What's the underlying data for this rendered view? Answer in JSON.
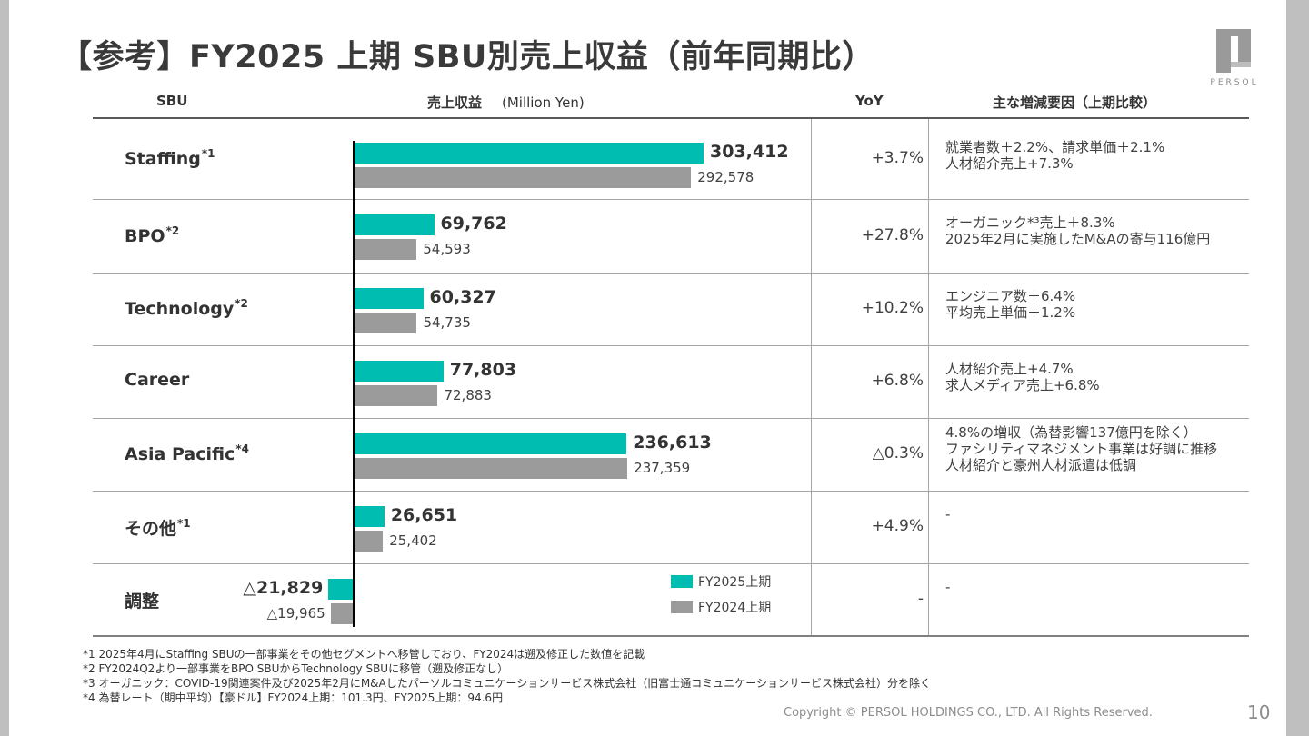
{
  "title": "【参考】FY2025 上期  SBU別売上収益（前年同期比）",
  "logo_text": "PERSOL",
  "headers": {
    "sbu": "SBU",
    "revenue": "売上収益",
    "unit": "(Million Yen)",
    "yoy": "YoY",
    "factors": "主な増減要因（上期比較）"
  },
  "rows": [
    {
      "name": "Staffing",
      "note": "*1",
      "yoy": "+3.7%",
      "factors": [
        "就業者数＋2.2%、請求単価＋2.1%",
        "人材紹介売上+7.3%"
      ],
      "fy25_label": "303,412",
      "fy24_label": "292,578"
    },
    {
      "name": "BPO",
      "note": "*2",
      "yoy": "+27.8%",
      "factors": [
        "オーガニック*³売上＋8.3%",
        "2025年2月に実施したM&Aの寄与116億円"
      ],
      "fy25_label": "69,762",
      "fy24_label": "54,593"
    },
    {
      "name": "Technology",
      "note": "*2",
      "yoy": "+10.2%",
      "factors": [
        "エンジニア数＋6.4%",
        "平均売上単価＋1.2%"
      ],
      "fy25_label": "60,327",
      "fy24_label": "54,735"
    },
    {
      "name": "Career",
      "note": "",
      "yoy": "+6.8%",
      "factors": [
        "人材紹介売上+4.7%",
        "求人メディア売上+6.8%"
      ],
      "fy25_label": "77,803",
      "fy24_label": "72,883"
    },
    {
      "name": "Asia Pacific",
      "note": "*4",
      "yoy": "△0.3%",
      "factors": [
        "4.8%の増収（為替影響137億円を除く）",
        "ファシリティマネジメント事業は好調に推移",
        "人材紹介と豪州人材派遣は低調"
      ],
      "fy25_label": "236,613",
      "fy24_label": "237,359"
    },
    {
      "name": "その他",
      "note": "*1",
      "yoy": "+4.9%",
      "factors": [
        "-"
      ],
      "fy25_label": "26,651",
      "fy24_label": "25,402"
    },
    {
      "name": "調整",
      "note": "",
      "yoy": "-",
      "factors": [
        "-"
      ],
      "fy25_label": "△21,829",
      "fy24_label": "△19,965"
    }
  ],
  "chart_data": {
    "type": "bar",
    "orientation": "horizontal",
    "categories": [
      "Staffing",
      "BPO",
      "Technology",
      "Career",
      "Asia Pacific",
      "その他",
      "調整"
    ],
    "series": [
      {
        "name": "FY2025上期",
        "color": "#00BDB1",
        "values": [
          303412,
          69762,
          60327,
          77803,
          236613,
          26651,
          -21829
        ]
      },
      {
        "name": "FY2024上期",
        "color": "#9B9B9B",
        "values": [
          292578,
          54593,
          54735,
          72883,
          237359,
          25402,
          -19965
        ]
      }
    ],
    "ylabel": "売上収益 (Million Yen)",
    "legend": "bottom-right",
    "grid": false
  },
  "footnotes": [
    "*1 2025年4月にStaffing SBUの一部事業をその他セグメントへ移管しており、FY2024は遡及修正した数値を記載",
    "*2 FY2024Q2より一部事業をBPO SBUからTechnology SBUに移管（遡及修正なし）",
    "*3 オーガニック：COVID-19関連案件及び2025年2月にM&Aしたパーソルコミュニケーションサービス株式会社（旧富士通コミュニケーションサービス株式会社）分を除く",
    "*4 為替レート（期中平均）【豪ドル】FY2024上期：101.3円、FY2025上期：94.6円"
  ],
  "copyright": "Copyright © PERSOL HOLDINGS CO., LTD. All Rights Reserved.",
  "page_number": "10"
}
